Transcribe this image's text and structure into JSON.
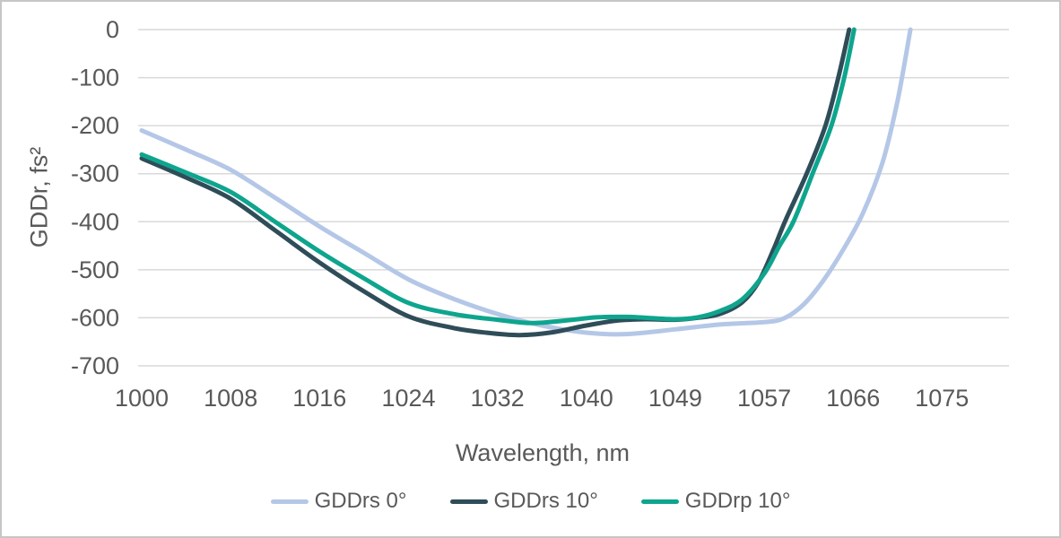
{
  "chart_data": {
    "type": "line",
    "title": "",
    "xlabel": "Wavelength, nm",
    "ylabel": "GDDr, fs²",
    "x_ticks": [
      1000,
      1008,
      1016,
      1024,
      1032,
      1040,
      1049,
      1057,
      1066,
      1075
    ],
    "y_ticks": [
      0,
      -100,
      -200,
      -300,
      -400,
      -500,
      -600,
      -700
    ],
    "ylim": [
      -700,
      0
    ],
    "xlim": [
      1000,
      1082
    ],
    "grid": "horizontal",
    "grid_color": "#d9d9d9",
    "tick_color": "#595959",
    "legend_position": "bottom",
    "series": [
      {
        "name": "GDDrs 0°",
        "color": "#b4c7e7",
        "points": [
          [
            1000,
            -210
          ],
          [
            1004,
            -250
          ],
          [
            1008,
            -292
          ],
          [
            1012,
            -350
          ],
          [
            1016,
            -410
          ],
          [
            1020,
            -465
          ],
          [
            1024,
            -520
          ],
          [
            1028,
            -560
          ],
          [
            1032,
            -592
          ],
          [
            1036,
            -616
          ],
          [
            1040,
            -631
          ],
          [
            1044,
            -634
          ],
          [
            1049,
            -624
          ],
          [
            1053,
            -614
          ],
          [
            1057,
            -609
          ],
          [
            1059,
            -601
          ],
          [
            1061,
            -572
          ],
          [
            1063,
            -522
          ],
          [
            1065,
            -458
          ],
          [
            1067,
            -382
          ],
          [
            1069,
            -275
          ],
          [
            1070.5,
            -148
          ],
          [
            1071.8,
            0
          ]
        ]
      },
      {
        "name": "GDDrs 10°",
        "color": "#2f4d59",
        "points": [
          [
            1000,
            -268
          ],
          [
            1004,
            -308
          ],
          [
            1008,
            -352
          ],
          [
            1012,
            -418
          ],
          [
            1016,
            -485
          ],
          [
            1020,
            -545
          ],
          [
            1024,
            -597
          ],
          [
            1028,
            -621
          ],
          [
            1031,
            -631
          ],
          [
            1034,
            -636
          ],
          [
            1037,
            -630
          ],
          [
            1040,
            -616
          ],
          [
            1043,
            -606
          ],
          [
            1046,
            -603
          ],
          [
            1049,
            -604
          ],
          [
            1051,
            -600
          ],
          [
            1053,
            -592
          ],
          [
            1055,
            -568
          ],
          [
            1056.5,
            -525
          ],
          [
            1058,
            -455
          ],
          [
            1059.2,
            -395
          ],
          [
            1061.3,
            -300
          ],
          [
            1063.2,
            -200
          ],
          [
            1064.5,
            -100
          ],
          [
            1065.6,
            0
          ]
        ]
      },
      {
        "name": "GDDrp 10°",
        "color": "#0ea58e",
        "points": [
          [
            1000,
            -260
          ],
          [
            1004,
            -298
          ],
          [
            1008,
            -338
          ],
          [
            1012,
            -400
          ],
          [
            1016,
            -462
          ],
          [
            1020,
            -518
          ],
          [
            1024,
            -569
          ],
          [
            1028,
            -592
          ],
          [
            1032,
            -604
          ],
          [
            1035,
            -611
          ],
          [
            1038,
            -606
          ],
          [
            1041,
            -599
          ],
          [
            1044,
            -598
          ],
          [
            1046,
            -600
          ],
          [
            1049,
            -603
          ],
          [
            1051,
            -599
          ],
          [
            1053,
            -586
          ],
          [
            1055,
            -562
          ],
          [
            1057,
            -508
          ],
          [
            1058.5,
            -452
          ],
          [
            1060,
            -398
          ],
          [
            1061.9,
            -300
          ],
          [
            1063.8,
            -200
          ],
          [
            1065.1,
            -100
          ],
          [
            1066.1,
            0
          ]
        ]
      }
    ]
  }
}
